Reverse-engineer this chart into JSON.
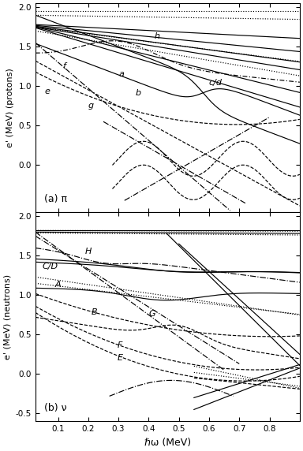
{
  "xlim": [
    0.025,
    0.9
  ],
  "panel_a": {
    "ylim": [
      -0.6,
      2.05
    ],
    "ylabel": "e' (MeV) (protons)",
    "label": "(a) π",
    "yticks": [
      0.0,
      0.5,
      1.0,
      1.5,
      2.0
    ],
    "ytick_labels": [
      "0.0",
      "0.5",
      "1.0",
      "1.5",
      "2.0"
    ]
  },
  "panel_b": {
    "ylim": [
      -0.6,
      2.05
    ],
    "ylabel": "e' (MeV) (neutrons)",
    "label": "(b) ν",
    "yticks": [
      -0.5,
      0.0,
      0.5,
      1.0,
      1.5,
      2.0
    ],
    "ytick_labels": [
      "-0.5",
      "0.0",
      "0.5",
      "1.0",
      "1.5",
      "2.0"
    ]
  },
  "xlabel": "ℏω (MeV)",
  "xticks": [
    0.1,
    0.2,
    0.3,
    0.4,
    0.5,
    0.6,
    0.7,
    0.8
  ]
}
